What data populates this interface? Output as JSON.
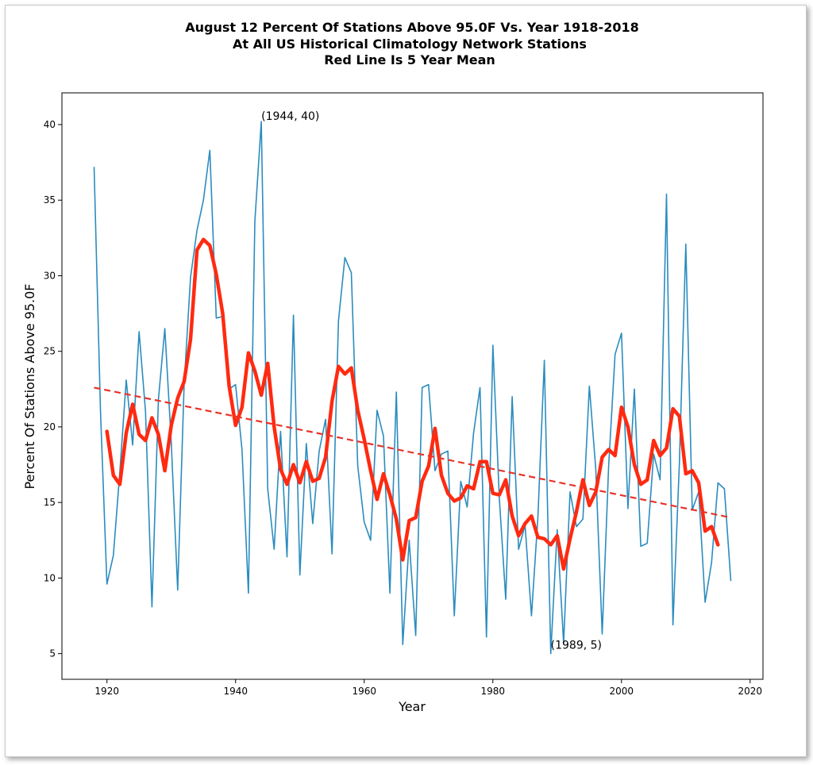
{
  "chart_data": {
    "type": "line",
    "title_lines": [
      "August 12 Percent Of Stations Above 95.0F Vs. Year 1918-2018",
      "At All US Historical Climatology Network Stations",
      "Red Line Is 5 Year Mean"
    ],
    "xlabel": "Year",
    "ylabel": "Percent Of Stations Above 95.0F",
    "xlim": [
      1913,
      2022
    ],
    "ylim": [
      3.3,
      42.1
    ],
    "xticks": [
      1920,
      1940,
      1960,
      1980,
      2000,
      2020
    ],
    "yticks": [
      5,
      10,
      15,
      20,
      25,
      30,
      35,
      40
    ],
    "grid": false,
    "series": [
      {
        "role": "annual",
        "color": "#2b8cbe",
        "x": [
          1918,
          1919,
          1920,
          1921,
          1922,
          1923,
          1924,
          1925,
          1926,
          1927,
          1928,
          1929,
          1930,
          1931,
          1932,
          1933,
          1934,
          1935,
          1936,
          1937,
          1938,
          1939,
          1940,
          1941,
          1942,
          1943,
          1944,
          1945,
          1946,
          1947,
          1948,
          1949,
          1950,
          1951,
          1952,
          1953,
          1954,
          1955,
          1956,
          1957,
          1958,
          1959,
          1960,
          1961,
          1962,
          1963,
          1964,
          1965,
          1966,
          1967,
          1968,
          1969,
          1970,
          1971,
          1972,
          1973,
          1974,
          1975,
          1976,
          1977,
          1978,
          1979,
          1980,
          1981,
          1982,
          1983,
          1984,
          1985,
          1986,
          1987,
          1988,
          1989,
          1990,
          1991,
          1992,
          1993,
          1994,
          1995,
          1996,
          1997,
          1998,
          1999,
          2000,
          2001,
          2002,
          2003,
          2004,
          2005,
          2006,
          2007,
          2008,
          2009,
          2010,
          2011,
          2012,
          2013,
          2014,
          2015,
          2016,
          2017
        ],
        "y": [
          37.2,
          21.0,
          9.6,
          11.5,
          17.0,
          23.1,
          18.8,
          26.3,
          21.0,
          8.1,
          21.8,
          26.5,
          19.0,
          9.2,
          22.8,
          29.9,
          33.0,
          35.0,
          38.3,
          27.2,
          27.3,
          22.5,
          22.8,
          18.5,
          9.0,
          33.6,
          40.2,
          15.9,
          11.9,
          19.7,
          11.4,
          27.4,
          10.2,
          18.9,
          13.6,
          18.4,
          20.5,
          11.6,
          27.0,
          31.2,
          30.2,
          17.4,
          13.7,
          12.5,
          21.1,
          19.4,
          9.0,
          22.3,
          5.6,
          12.5,
          6.2,
          22.6,
          22.8,
          17.1,
          18.2,
          18.4,
          7.5,
          16.4,
          14.7,
          19.6,
          22.6,
          6.1,
          25.4,
          15.3,
          8.6,
          22.0,
          11.9,
          13.5,
          7.5,
          14.0,
          24.4,
          5.0,
          13.2,
          5.7,
          15.7,
          13.4,
          13.9,
          22.7,
          17.2,
          6.3,
          17.4,
          24.8,
          26.2,
          14.6,
          22.5,
          12.1,
          12.3,
          18.2,
          16.5,
          35.4,
          6.9,
          17.6,
          32.1,
          14.5,
          15.7,
          8.4,
          11.0,
          16.3,
          15.9,
          9.8
        ]
      },
      {
        "name": "5 Year Mean",
        "role": "five_year_mean",
        "color": "#ff2a10",
        "x": [
          1920,
          1921,
          1922,
          1923,
          1924,
          1925,
          1926,
          1927,
          1928,
          1929,
          1930,
          1931,
          1932,
          1933,
          1934,
          1935,
          1936,
          1937,
          1938,
          1939,
          1940,
          1941,
          1942,
          1943,
          1944,
          1945,
          1946,
          1947,
          1948,
          1949,
          1950,
          1951,
          1952,
          1953,
          1954,
          1955,
          1956,
          1957,
          1958,
          1959,
          1960,
          1961,
          1962,
          1963,
          1964,
          1965,
          1966,
          1967,
          1968,
          1969,
          1970,
          1971,
          1972,
          1973,
          1974,
          1975,
          1976,
          1977,
          1978,
          1979,
          1980,
          1981,
          1982,
          1983,
          1984,
          1985,
          1986,
          1987,
          1988,
          1989,
          1990,
          1991,
          1992,
          1993,
          1994,
          1995,
          1996,
          1997,
          1998,
          1999,
          2000,
          2001,
          2002,
          2003,
          2004,
          2005,
          2006,
          2007,
          2008,
          2009,
          2010,
          2011,
          2012,
          2013,
          2014,
          2015
        ],
        "y": [
          19.7,
          16.8,
          16.2,
          19.6,
          21.5,
          19.5,
          19.1,
          20.6,
          19.5,
          17.1,
          20.1,
          21.9,
          23.0,
          25.8,
          31.7,
          32.4,
          32.0,
          30.1,
          27.5,
          22.7,
          20.1,
          21.3,
          24.9,
          23.7,
          22.1,
          24.2,
          20.0,
          17.2,
          16.2,
          17.5,
          16.3,
          17.7,
          16.4,
          16.6,
          18.0,
          21.7,
          24.0,
          23.5,
          23.9,
          21.1,
          19.2,
          17.1,
          15.2,
          16.9,
          15.5,
          13.9,
          11.2,
          13.8,
          14.0,
          16.4,
          17.4,
          19.9,
          16.8,
          15.6,
          15.1,
          15.3,
          16.1,
          15.9,
          17.7,
          17.7,
          15.6,
          15.5,
          16.5,
          14.1,
          12.8,
          13.6,
          14.1,
          12.7,
          12.6,
          12.2,
          12.8,
          10.6,
          12.6,
          14.4,
          16.5,
          14.8,
          15.7,
          18.0,
          18.5,
          18.1,
          21.3,
          20.0,
          17.5,
          16.2,
          16.5,
          19.1,
          18.1,
          18.6,
          21.2,
          20.7,
          16.9,
          17.1,
          16.3,
          13.1,
          13.4,
          12.2
        ]
      },
      {
        "role": "trend",
        "color": "#e8332a",
        "style": "dashed",
        "x": [
          1918,
          2017
        ],
        "y": [
          22.6,
          14.0
        ]
      }
    ],
    "annotations": [
      {
        "text": "(1944, 40)",
        "x": 1944,
        "y": 40
      },
      {
        "text": "(1989, 5)",
        "x": 1989,
        "y": 5
      }
    ]
  }
}
